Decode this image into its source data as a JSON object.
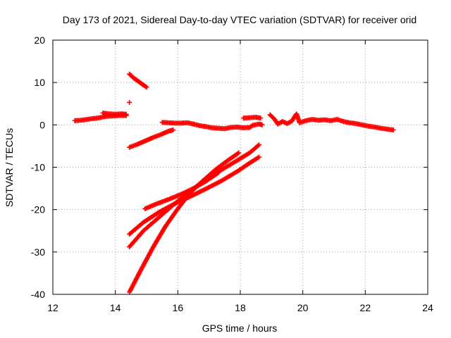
{
  "chart_data": {
    "type": "scatter",
    "title": "Day 173 of 2021, Sidereal Day-to-day VTEC variation (SDTVAR) for receiver orid",
    "xlabel": "GPS time / hours",
    "ylabel": "SDTVAR / TECUs",
    "xlim": [
      12,
      24
    ],
    "ylim": [
      -40,
      20
    ],
    "x_ticks": [
      12,
      14,
      16,
      18,
      20,
      22,
      24
    ],
    "y_ticks": [
      -40,
      -30,
      -20,
      -10,
      0,
      10,
      20
    ],
    "x_tick_labels": [
      "12",
      "14",
      "16",
      "18",
      "20",
      "22",
      "24"
    ],
    "y_tick_labels": [
      "-40",
      "-30",
      "-20",
      "-10",
      "0",
      "10",
      "20"
    ],
    "grid": true,
    "marker": "plus",
    "color": "#ff0000",
    "series": [
      {
        "points": [
          [
            12.7,
            1.0
          ],
          [
            12.9,
            1.1
          ],
          [
            13.1,
            1.3
          ],
          [
            13.3,
            1.5
          ],
          [
            13.5,
            1.7
          ],
          [
            13.7,
            2.0
          ],
          [
            13.9,
            2.1
          ],
          [
            14.1,
            2.2
          ],
          [
            14.35,
            2.2
          ]
        ]
      },
      {
        "points": [
          [
            13.6,
            2.8
          ],
          [
            13.8,
            2.6
          ],
          [
            14.0,
            2.5
          ],
          [
            14.2,
            2.6
          ],
          [
            14.35,
            2.5
          ]
        ]
      },
      {
        "points": [
          [
            14.45,
            5.3
          ]
        ]
      },
      {
        "points": [
          [
            14.45,
            12.0
          ],
          [
            14.6,
            11.0
          ],
          [
            14.75,
            10.2
          ],
          [
            14.9,
            9.4
          ],
          [
            15.0,
            8.9
          ]
        ]
      },
      {
        "points": [
          [
            14.45,
            -5.3
          ],
          [
            14.7,
            -4.6
          ],
          [
            14.95,
            -3.8
          ],
          [
            15.2,
            -3.0
          ],
          [
            15.45,
            -2.3
          ],
          [
            15.7,
            -1.5
          ],
          [
            15.85,
            -1.2
          ]
        ]
      },
      {
        "points": [
          [
            15.5,
            0.6
          ],
          [
            15.7,
            0.5
          ],
          [
            15.9,
            0.4
          ],
          [
            16.1,
            0.4
          ],
          [
            16.3,
            0.5
          ],
          [
            16.5,
            0.2
          ],
          [
            16.7,
            -0.2
          ],
          [
            16.9,
            -0.4
          ],
          [
            17.1,
            -0.7
          ],
          [
            17.3,
            -0.8
          ],
          [
            17.5,
            -0.9
          ],
          [
            17.7,
            -0.6
          ],
          [
            17.9,
            -0.5
          ],
          [
            18.1,
            -0.7
          ],
          [
            18.3,
            -0.6
          ],
          [
            18.4,
            -0.1
          ],
          [
            18.6,
            0.2
          ],
          [
            18.7,
            0.0
          ]
        ]
      },
      {
        "points": [
          [
            18.1,
            1.6
          ],
          [
            18.3,
            1.7
          ],
          [
            18.5,
            1.8
          ],
          [
            18.65,
            1.6
          ]
        ]
      },
      {
        "points": [
          [
            18.95,
            2.4
          ],
          [
            19.1,
            1.3
          ],
          [
            19.2,
            0.2
          ],
          [
            19.35,
            0.8
          ],
          [
            19.5,
            0.3
          ],
          [
            19.65,
            0.9
          ],
          [
            19.8,
            2.6
          ],
          [
            19.9,
            0.5
          ],
          [
            20.1,
            1.0
          ],
          [
            20.3,
            1.3
          ],
          [
            20.5,
            1.1
          ],
          [
            20.7,
            1.2
          ],
          [
            20.9,
            1.0
          ],
          [
            21.1,
            1.3
          ],
          [
            21.3,
            0.8
          ],
          [
            21.5,
            0.5
          ],
          [
            21.7,
            0.3
          ],
          [
            21.9,
            0.0
          ],
          [
            22.1,
            -0.3
          ],
          [
            22.3,
            -0.5
          ],
          [
            22.5,
            -0.8
          ],
          [
            22.7,
            -1.0
          ],
          [
            22.9,
            -1.2
          ]
        ]
      },
      {
        "points": [
          [
            14.45,
            -39.5
          ],
          [
            14.8,
            -34.5
          ],
          [
            15.2,
            -29.0
          ],
          [
            15.6,
            -24.0
          ],
          [
            16.0,
            -19.8
          ],
          [
            16.4,
            -16.0
          ],
          [
            16.8,
            -13.2
          ],
          [
            17.2,
            -10.6
          ],
          [
            17.6,
            -8.4
          ],
          [
            17.95,
            -6.6
          ]
        ]
      },
      {
        "points": [
          [
            14.45,
            -28.8
          ],
          [
            14.9,
            -25.0
          ],
          [
            15.4,
            -21.8
          ],
          [
            15.9,
            -18.6
          ],
          [
            16.4,
            -15.6
          ],
          [
            16.9,
            -12.8
          ],
          [
            17.4,
            -10.6
          ],
          [
            17.9,
            -8.4
          ],
          [
            18.3,
            -6.6
          ],
          [
            18.6,
            -4.7
          ]
        ]
      },
      {
        "points": [
          [
            14.45,
            -25.8
          ],
          [
            14.9,
            -23.0
          ],
          [
            15.4,
            -20.6
          ],
          [
            15.9,
            -18.6
          ],
          [
            16.4,
            -16.9
          ],
          [
            16.9,
            -15.1
          ],
          [
            17.4,
            -13.2
          ],
          [
            17.9,
            -11.0
          ],
          [
            18.3,
            -9.0
          ],
          [
            18.6,
            -7.6
          ]
        ]
      },
      {
        "points": [
          [
            14.95,
            -19.8
          ],
          [
            15.3,
            -18.7
          ],
          [
            15.7,
            -17.6
          ],
          [
            16.1,
            -16.4
          ],
          [
            16.5,
            -15.0
          ],
          [
            16.9,
            -13.3
          ],
          [
            17.3,
            -11.3
          ]
        ]
      }
    ]
  }
}
